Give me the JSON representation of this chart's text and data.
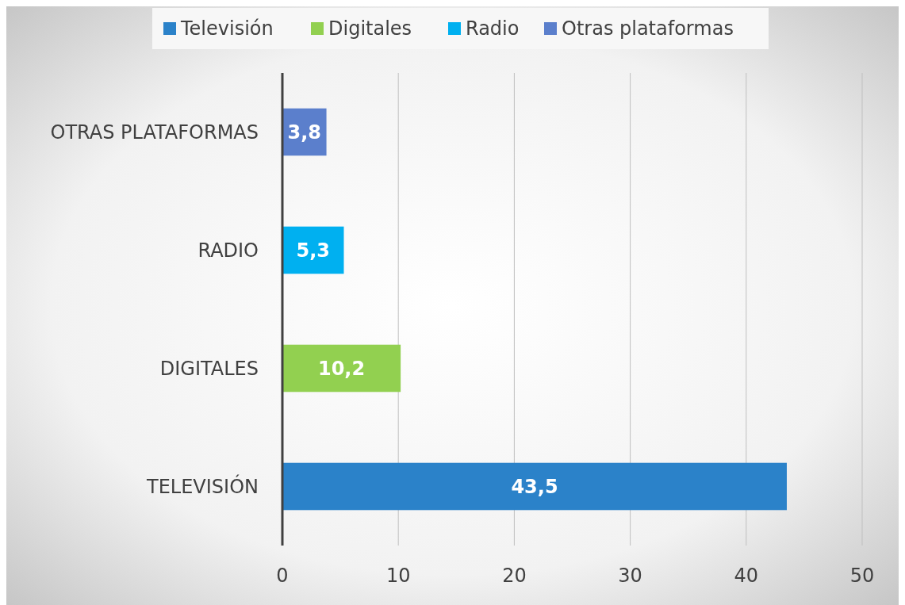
{
  "chart_data": {
    "type": "bar",
    "orientation": "horizontal",
    "categories": [
      "OTRAS PLATAFORMAS",
      "RADIO",
      "DIGITALES",
      "TELEVISIÓN"
    ],
    "series": [
      {
        "name": "Televisión",
        "color": "#2b82c9",
        "values": [
          null,
          null,
          null,
          43.5
        ],
        "value_labels": [
          null,
          null,
          null,
          "43,5"
        ]
      },
      {
        "name": "Digitales",
        "color": "#92d050",
        "values": [
          null,
          null,
          10.2,
          null
        ],
        "value_labels": [
          null,
          null,
          "10,2",
          null
        ]
      },
      {
        "name": "Radio",
        "color": "#00b0f0",
        "values": [
          null,
          5.3,
          null,
          null
        ],
        "value_labels": [
          null,
          "5,3",
          null,
          null
        ]
      },
      {
        "name": "Otras plataformas",
        "color": "#5b7fcc",
        "values": [
          3.8,
          null,
          null,
          null
        ],
        "value_labels": [
          "3,8",
          null,
          null,
          null
        ]
      }
    ],
    "xlim": [
      0,
      50
    ],
    "xticks": [
      0,
      10,
      20,
      30,
      40,
      50
    ],
    "grid": "x",
    "legend": "top"
  }
}
